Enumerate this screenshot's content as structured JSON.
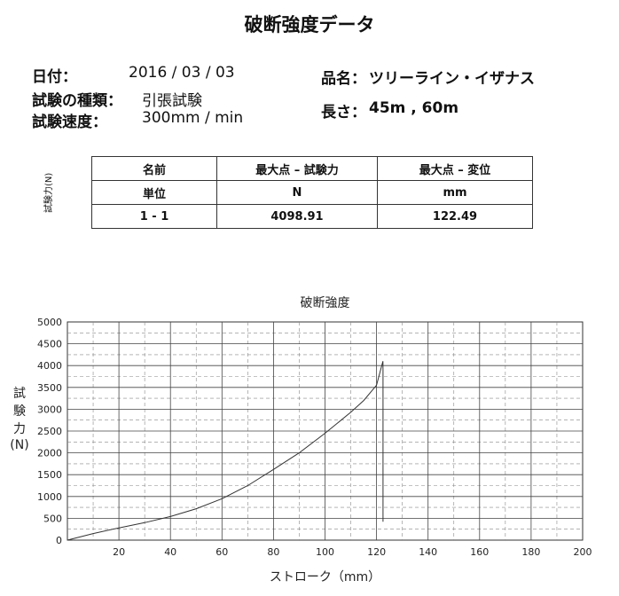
{
  "page": {
    "title": "破断強度データ",
    "date_label": "日付：",
    "date_value": "2016 / 03 / 03",
    "test_type_label": "試験の種類：",
    "test_type_value": "引張試験",
    "speed_label": "試験速度：",
    "speed_value": "300mm / min",
    "product_label": "品名：",
    "product_value": "ツリーライン・イザナス",
    "length_label": "長さ：",
    "length_value": "45m , 60m",
    "side_vertical_label": "試験力(N)"
  },
  "table": {
    "headers": [
      "名前",
      "最大点 – 試験力",
      "最大点 – 変位"
    ],
    "units": [
      "単位",
      "N",
      "mm"
    ],
    "rows": [
      [
        "1 - 1",
        "4098.91",
        "122.49"
      ]
    ]
  },
  "chart_data": {
    "type": "line",
    "title": "破断強度",
    "xlabel": "ストローク（mm）",
    "ylabel_chars": [
      "試",
      "験",
      "力",
      "(N)"
    ],
    "xlim": [
      0,
      200
    ],
    "ylim": [
      0,
      5000
    ],
    "xticks": [
      20,
      40,
      60,
      80,
      100,
      120,
      140,
      160,
      180,
      200
    ],
    "yticks": [
      0,
      500,
      1000,
      1500,
      2000,
      2500,
      3000,
      3500,
      4000,
      4500,
      5000
    ],
    "grid": true,
    "series": [
      {
        "color": "#333333",
        "points": [
          [
            0,
            0
          ],
          [
            10,
            150
          ],
          [
            20,
            280
          ],
          [
            30,
            400
          ],
          [
            40,
            540
          ],
          [
            50,
            720
          ],
          [
            60,
            950
          ],
          [
            70,
            1250
          ],
          [
            80,
            1620
          ],
          [
            90,
            2000
          ],
          [
            100,
            2450
          ],
          [
            110,
            2930
          ],
          [
            115,
            3200
          ],
          [
            120,
            3550
          ],
          [
            122.49,
            4098.91
          ],
          [
            122.5,
            3900
          ],
          [
            122.5,
            420
          ]
        ]
      }
    ]
  }
}
